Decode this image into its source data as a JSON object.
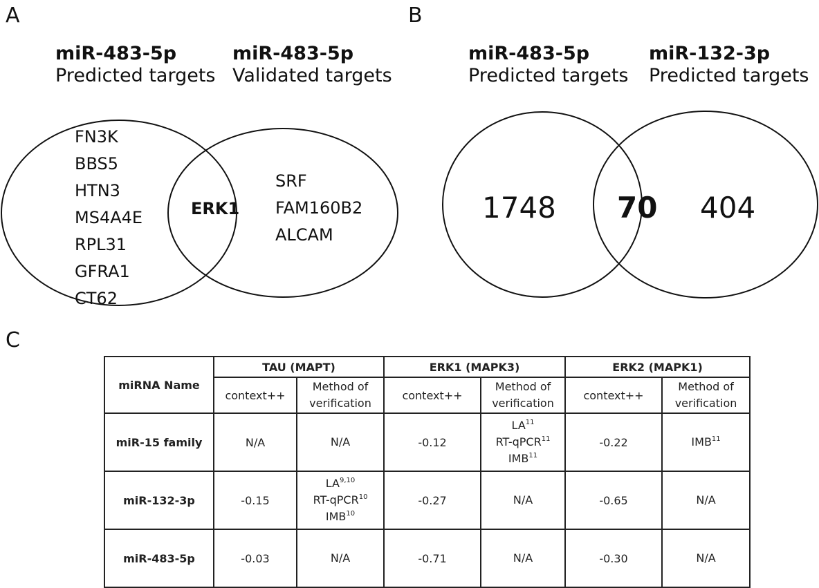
{
  "panel_a": {
    "label": "A",
    "left_set": {
      "mirna": "miR-483-5p",
      "subtitle": "Predicted targets",
      "items": [
        "FN3K",
        "BBS5",
        "HTN3",
        "MS4A4E",
        "RPL31",
        "GFRA1",
        "CT62"
      ]
    },
    "right_set": {
      "mirna": "miR-483-5p",
      "subtitle": "Validated targets",
      "items": [
        "SRF",
        "FAM160B2",
        "ALCAM"
      ]
    },
    "intersection": "ERK1"
  },
  "panel_b": {
    "label": "B",
    "left_set": {
      "mirna": "miR-483-5p",
      "subtitle": "Predicted targets",
      "count": "1748"
    },
    "right_set": {
      "mirna": "miR-132-3p",
      "subtitle": "Predicted targets",
      "count": "404"
    },
    "intersection": "70"
  },
  "panel_c": {
    "label": "C",
    "header": {
      "mirna_name": "miRNA Name",
      "groups": [
        "TAU (MAPT)",
        "ERK1 (MAPK3)",
        "ERK2 (MAPK1)"
      ],
      "context": "context++",
      "method_line1": "Method of",
      "method_line2": "verification"
    },
    "rows": [
      {
        "name": "miR-15 family",
        "tau_context": "N/A",
        "tau_method": [
          {
            "t": "N/A",
            "s": ""
          }
        ],
        "erk1_context": "-0.12",
        "erk1_method": [
          {
            "t": "LA",
            "s": "11"
          },
          {
            "t": "RT-qPCR",
            "s": "11"
          },
          {
            "t": "IMB",
            "s": "11"
          }
        ],
        "erk2_context": "-0.22",
        "erk2_method": [
          {
            "t": "IMB",
            "s": "11"
          }
        ]
      },
      {
        "name": "miR-132-3p",
        "tau_context": "-0.15",
        "tau_method": [
          {
            "t": "LA",
            "s": "9,10"
          },
          {
            "t": "RT-qPCR",
            "s": "10"
          },
          {
            "t": "IMB",
            "s": "10"
          }
        ],
        "erk1_context": "-0.27",
        "erk1_method": [
          {
            "t": "N/A",
            "s": ""
          }
        ],
        "erk2_context": "-0.65",
        "erk2_method": [
          {
            "t": "N/A",
            "s": ""
          }
        ]
      },
      {
        "name": "miR-483-5p",
        "tau_context": "-0.03",
        "tau_method": [
          {
            "t": "N/A",
            "s": ""
          }
        ],
        "erk1_context": "-0.71",
        "erk1_method": [
          {
            "t": "N/A",
            "s": ""
          }
        ],
        "erk2_context": "-0.30",
        "erk2_method": [
          {
            "t": "N/A",
            "s": ""
          }
        ]
      }
    ]
  }
}
